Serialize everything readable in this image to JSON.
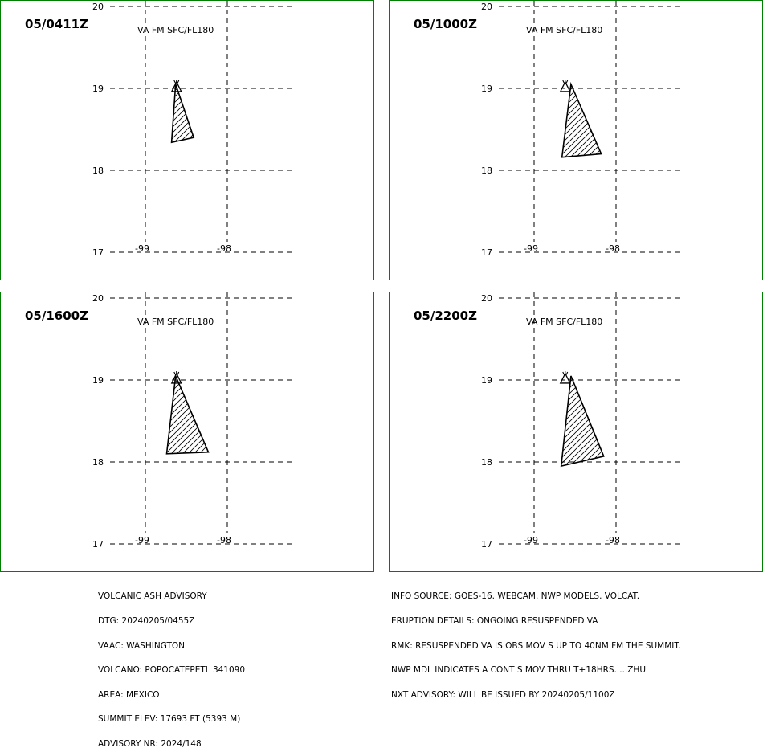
{
  "panels": [
    {
      "valid_time": "05/0411Z",
      "level": "VA FM SFC/FL180",
      "lat_labels": [
        "20",
        "19",
        "18",
        "17"
      ],
      "lon_labels": [
        "-99",
        "-98"
      ],
      "ash_polygon": [
        [
          -98.63,
          19.05
        ],
        [
          -98.41,
          18.4
        ],
        [
          -98.68,
          18.34
        ]
      ],
      "volcano": [
        -98.62,
        19.02
      ]
    },
    {
      "valid_time": "05/1000Z",
      "level": "VA FM SFC/FL180",
      "lat_labels": [
        "20",
        "19",
        "18",
        "17"
      ],
      "lon_labels": [
        "-99",
        "-98"
      ],
      "ash_polygon": [
        [
          -98.55,
          19.05
        ],
        [
          -98.18,
          18.2
        ],
        [
          -98.66,
          18.16
        ]
      ],
      "volcano": [
        -98.62,
        19.02
      ]
    },
    {
      "valid_time": "05/1600Z",
      "level": "VA FM SFC/FL180",
      "lat_labels": [
        "20",
        "19",
        "18",
        "17"
      ],
      "lon_labels": [
        "-99",
        "-98"
      ],
      "ash_polygon": [
        [
          -98.63,
          19.05
        ],
        [
          -98.23,
          18.12
        ],
        [
          -98.74,
          18.1
        ]
      ],
      "volcano": [
        -98.62,
        19.02
      ]
    },
    {
      "valid_time": "05/2200Z",
      "level": "VA FM SFC/FL180",
      "lat_labels": [
        "20",
        "19",
        "18",
        "17"
      ],
      "lon_labels": [
        "-99",
        "-98"
      ],
      "ash_polygon": [
        [
          -98.55,
          19.05
        ],
        [
          -98.15,
          18.07
        ],
        [
          -98.67,
          17.95
        ]
      ],
      "volcano": [
        -98.62,
        19.02
      ]
    }
  ],
  "advisory_left": [
    "VOLCANIC ASH ADVISORY",
    "DTG: 20240205/0455Z",
    "VAAC: WASHINGTON",
    "VOLCANO: POPOCATEPETL 341090",
    "AREA: MEXICO",
    "SUMMIT ELEV: 17693 FT (5393 M)",
    "ADVISORY NR: 2024/148"
  ],
  "advisory_right": [
    "INFO SOURCE: GOES-16. WEBCAM. NWP MODELS. VOLCAT.",
    "ERUPTION DETAILS: ONGOING RESUSPENDED VA",
    "RMK: RESUSPENDED VA IS OBS MOV S UP TO 40NM FM THE SUMMIT.",
    "NWP MDL INDICATES A CONT S MOV THRU T+18HRS. ...ZHU",
    "NXT ADVISORY: WILL BE ISSUED BY 20240205/1100Z"
  ],
  "colors": {
    "frame": "#008000",
    "lines": "#000000",
    "background": "#ffffff"
  }
}
